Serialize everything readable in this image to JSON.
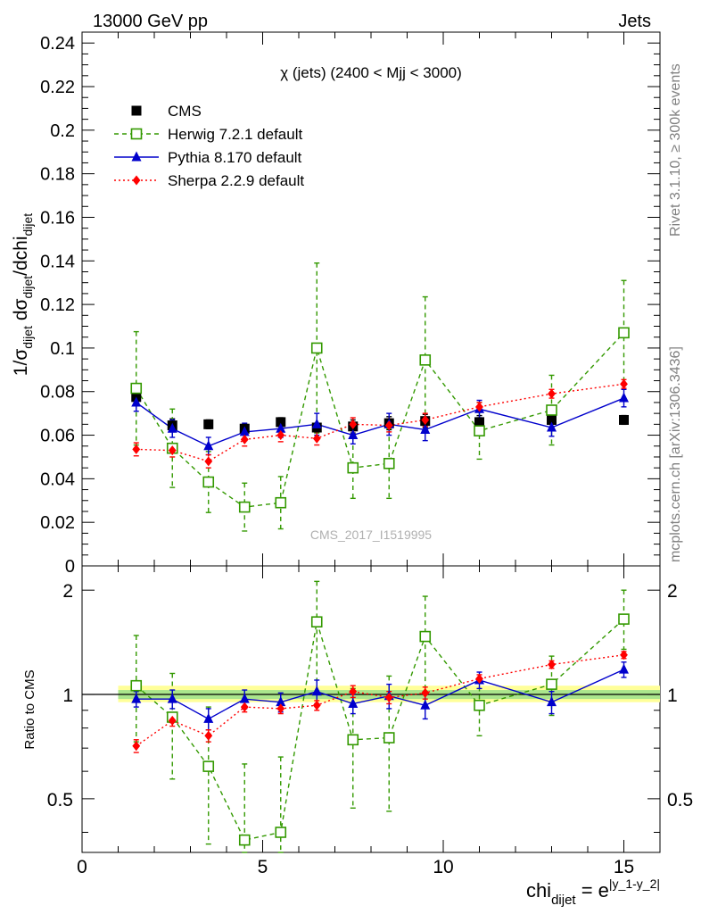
{
  "header": {
    "left": "13000 GeV pp",
    "right": "Jets"
  },
  "side_labels": {
    "rivet": "Rivet 3.1.10, ≥ 300k events",
    "mcplots": "mcplots.cern.ch [arXiv:1306.3436]"
  },
  "chart_data": [
    {
      "type": "scatter",
      "title": "χ (jets) (2400 < Mjj < 3000)",
      "ylabel": "1/σ_dijet dσ_dijet/dchi_dijet",
      "ylim": [
        0,
        0.245
      ],
      "xlim": [
        0,
        16
      ],
      "yticks": [
        "0.24",
        "0.22",
        "0.2",
        "0.18",
        "0.16",
        "0.14",
        "0.12",
        "0.1",
        "0.08",
        "0.06",
        "0.04",
        "0.02",
        "0"
      ],
      "grid": false,
      "legend_placement": "top-left",
      "watermark": "CMS_2017_I1519995",
      "series": [
        {
          "name": "CMS",
          "color": "#000000",
          "marker": "filled-square",
          "x": [
            1.5,
            2.5,
            3.5,
            4.5,
            5.5,
            6.5,
            7.5,
            8.5,
            9.5,
            11,
            13,
            15
          ],
          "y": [
            0.0775,
            0.0645,
            0.065,
            0.063,
            0.066,
            0.0635,
            0.064,
            0.0655,
            0.0665,
            0.066,
            0.067,
            0.067
          ],
          "err": [
            0.003,
            0.003,
            0.002,
            0.002,
            0.002,
            0.002,
            0.003,
            0.003,
            0.003,
            0.003,
            0.002,
            0.002
          ]
        },
        {
          "name": "Herwig 7.2.1 default",
          "color": "#339900",
          "marker": "open-square",
          "line": "dashed",
          "x": [
            1.5,
            2.5,
            3.5,
            4.5,
            5.5,
            6.5,
            7.5,
            8.5,
            9.5,
            11,
            13,
            15
          ],
          "y": [
            0.0815,
            0.054,
            0.0385,
            0.027,
            0.029,
            0.1,
            0.045,
            0.047,
            0.0945,
            0.062,
            0.0715,
            0.107
          ],
          "err": [
            0.026,
            0.018,
            0.014,
            0.011,
            0.012,
            0.039,
            0.014,
            0.016,
            0.029,
            0.013,
            0.016,
            0.024
          ]
        },
        {
          "name": "Pythia 8.170 default",
          "color": "#0000cc",
          "marker": "filled-triangle",
          "line": "solid",
          "x": [
            1.5,
            2.5,
            3.5,
            4.5,
            5.5,
            6.5,
            7.5,
            8.5,
            9.5,
            11,
            13,
            15
          ],
          "y": [
            0.075,
            0.063,
            0.055,
            0.0615,
            0.063,
            0.065,
            0.06,
            0.065,
            0.0625,
            0.072,
            0.0635,
            0.077
          ],
          "err": [
            0.004,
            0.004,
            0.004,
            0.004,
            0.004,
            0.005,
            0.004,
            0.005,
            0.005,
            0.004,
            0.004,
            0.004
          ]
        },
        {
          "name": "Sherpa 2.2.9 default",
          "color": "#ff0000",
          "marker": "filled-diamond",
          "line": "dotted",
          "x": [
            1.5,
            2.5,
            3.5,
            4.5,
            5.5,
            6.5,
            7.5,
            8.5,
            9.5,
            11,
            13,
            15
          ],
          "y": [
            0.0535,
            0.053,
            0.048,
            0.058,
            0.06,
            0.0585,
            0.065,
            0.0645,
            0.067,
            0.073,
            0.079,
            0.0835
          ],
          "err": [
            0.003,
            0.003,
            0.003,
            0.003,
            0.003,
            0.003,
            0.003,
            0.003,
            0.003,
            0.002,
            0.002,
            0.002
          ]
        }
      ]
    },
    {
      "type": "scatter",
      "ylabel": "Ratio to CMS",
      "yscale": "log",
      "ylim": [
        0.35,
        2.35
      ],
      "xlim": [
        0,
        16
      ],
      "xlabel": "chi_dijet = e^|y_1-y_2|",
      "xticks": [
        "0",
        "5",
        "10",
        "15"
      ],
      "yticks": [
        "0.5",
        "1",
        "2"
      ],
      "reference_band": {
        "xmin": 1,
        "xmax": 16,
        "inner": [
          0.97,
          1.03
        ],
        "outer": [
          0.95,
          1.06
        ]
      },
      "series": [
        {
          "name": "Herwig 7.2.1 default",
          "color": "#339900",
          "x": [
            1.5,
            2.5,
            3.5,
            4.5,
            5.5,
            6.5,
            7.5,
            8.5,
            9.5,
            11,
            13,
            15
          ],
          "y": [
            1.06,
            0.86,
            0.62,
            0.38,
            0.4,
            1.62,
            0.74,
            0.75,
            1.47,
            0.93,
            1.07,
            1.65
          ],
          "err_lo": [
            0.33,
            0.29,
            0.25,
            0.16,
            0.16,
            0.62,
            0.27,
            0.29,
            0.45,
            0.17,
            0.2,
            0.3
          ],
          "err_hi": [
            0.42,
            0.29,
            0.3,
            0.25,
            0.26,
            0.5,
            0.3,
            0.38,
            0.45,
            0.18,
            0.22,
            0.35
          ]
        },
        {
          "name": "Pythia 8.170 default",
          "color": "#0000cc",
          "x": [
            1.5,
            2.5,
            3.5,
            4.5,
            5.5,
            6.5,
            7.5,
            8.5,
            9.5,
            11,
            13,
            15
          ],
          "y": [
            0.97,
            0.97,
            0.85,
            0.97,
            0.95,
            1.02,
            0.94,
            0.99,
            0.93,
            1.1,
            0.95,
            1.18
          ],
          "err": [
            0.05,
            0.06,
            0.06,
            0.06,
            0.06,
            0.08,
            0.06,
            0.08,
            0.08,
            0.06,
            0.07,
            0.06
          ]
        },
        {
          "name": "Sherpa 2.2.9 default",
          "color": "#ff0000",
          "x": [
            1.5,
            2.5,
            3.5,
            4.5,
            5.5,
            6.5,
            7.5,
            8.5,
            9.5,
            11,
            13,
            15
          ],
          "y": [
            0.71,
            0.84,
            0.76,
            0.92,
            0.91,
            0.93,
            1.02,
            0.98,
            1.01,
            1.11,
            1.22,
            1.3
          ],
          "err": [
            0.03,
            0.03,
            0.03,
            0.03,
            0.03,
            0.03,
            0.04,
            0.04,
            0.04,
            0.03,
            0.03,
            0.03
          ]
        }
      ]
    }
  ]
}
